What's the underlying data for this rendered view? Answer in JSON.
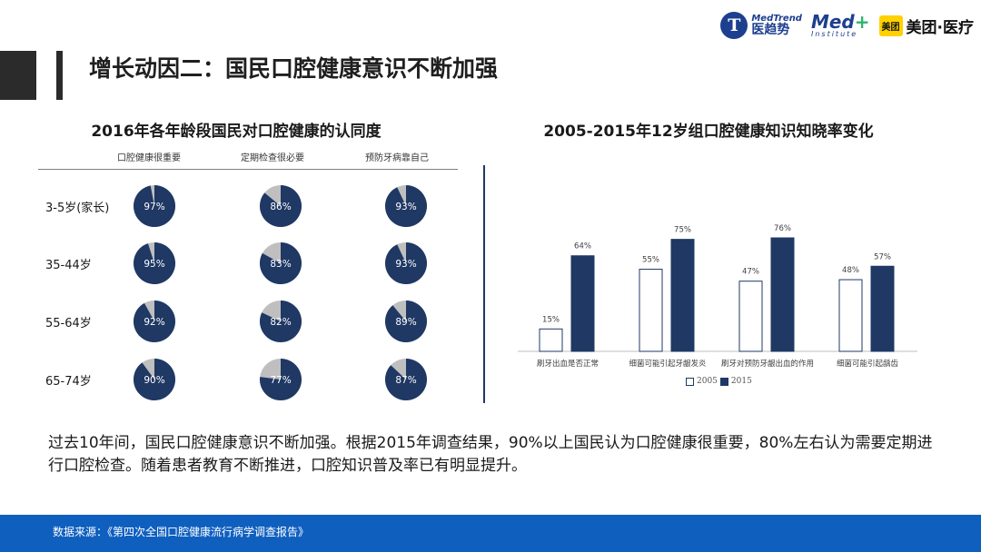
{
  "header": {
    "title": "增长动因二：国民口腔健康意识不断加强"
  },
  "logos": {
    "medtrend_en": "MedTrend",
    "medtrend_cn": "医趋势",
    "medplus_main": "Med",
    "medplus_plus": "+",
    "medplus_sub": "Institute",
    "meituan_badge": "美团",
    "meituan_text": "美团·医疗"
  },
  "left_chart": {
    "title": "2016年各年龄段国民对口腔健康的认同度",
    "columns": [
      "口腔健康很重要",
      "定期检查很必要",
      "预防牙病靠自己"
    ],
    "rows": [
      {
        "label": "3-5岁(家长)",
        "values": [
          "97%",
          "86%",
          "93%"
        ]
      },
      {
        "label": "35-44岁",
        "values": [
          "95%",
          "83%",
          "93%"
        ]
      },
      {
        "label": "55-64岁",
        "values": [
          "92%",
          "82%",
          "89%"
        ]
      },
      {
        "label": "65-74岁",
        "values": [
          "90%",
          "77%",
          "87%"
        ]
      }
    ],
    "colors": {
      "main": "#1f3864",
      "rest": "#bfbfbf"
    }
  },
  "chart_data": {
    "type": "bar",
    "title": "2005-2015年12岁组口腔健康知识知晓率变化",
    "categories": [
      "刷牙出血是否正常",
      "细菌可能引起牙龈发炎",
      "刷牙对预防牙龈出血的作用",
      "细菌可能引起龋齿"
    ],
    "series": [
      {
        "name": "2005",
        "values": [
          15,
          55,
          47,
          48
        ],
        "labels": [
          "15%",
          "55%",
          "47%",
          "48%"
        ],
        "color": "#ffffff",
        "stroke": "#1f3864"
      },
      {
        "name": "2015",
        "values": [
          64,
          75,
          76,
          57
        ],
        "labels": [
          "64%",
          "75%",
          "76%",
          "57%"
        ],
        "color": "#1f3864",
        "stroke": "#1f3864"
      }
    ],
    "ylim": [
      0,
      80
    ],
    "grid": false,
    "legend": "bottom"
  },
  "summary": "过去10年间，国民口腔健康意识不断加强。根据2015年调查结果，90%以上国民认为口腔健康很重要，80%左右认为需要定期进行口腔检查。随着患者教育不断推进，口腔知识普及率已有明显提升。",
  "footer": {
    "source": "数据来源：《第四次全国口腔健康流行病学调查报告》"
  }
}
